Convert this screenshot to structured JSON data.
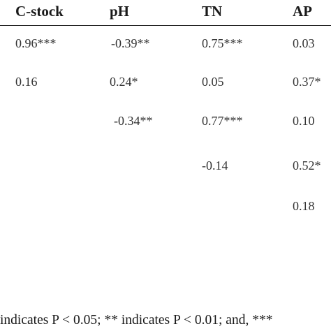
{
  "headers": [
    "C-stock",
    "pH",
    "TN",
    "AP"
  ],
  "rows": [
    [
      "0.96***",
      "-0.39**",
      "0.75***",
      "0.03"
    ],
    [
      "0.16",
      "0.24*",
      "0.05",
      "0.37*"
    ],
    [
      "",
      "-0.34**",
      "0.77***",
      "0.10"
    ],
    [
      "",
      "",
      "-0.14",
      "0.52*"
    ],
    [
      "",
      "",
      "",
      "0.18"
    ]
  ],
  "footnote": "indicates P < 0.05; ** indicates P < 0.01; and, ***"
}
